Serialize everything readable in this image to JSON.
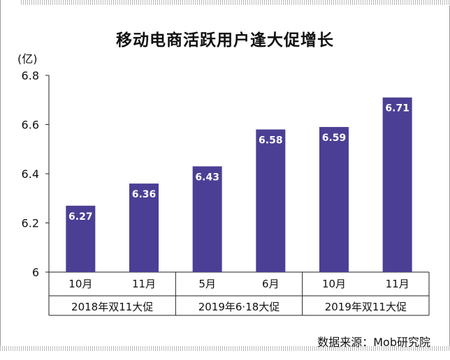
{
  "chart_data": {
    "type": "bar",
    "title": "移动电商活跃用户逢大促增长",
    "unit_label": "(亿)",
    "categories": [
      "10月",
      "11月",
      "5月",
      "6月",
      "10月",
      "11月"
    ],
    "groups": [
      {
        "label": "2018年双11大促",
        "count": 2
      },
      {
        "label": "2019年6·18大促",
        "count": 2
      },
      {
        "label": "2019年双11大促",
        "count": 2
      }
    ],
    "values": [
      6.27,
      6.36,
      6.43,
      6.58,
      6.59,
      6.71
    ],
    "data_labels": [
      "6.27",
      "6.36",
      "6.43",
      "6.58",
      "6.59",
      "6.71"
    ],
    "ylim": [
      6,
      6.8
    ],
    "yticks": [
      6,
      6.2,
      6.4,
      6.6,
      6.8
    ],
    "ytick_labels": [
      "6",
      "6.2",
      "6.4",
      "6.6",
      "6.8"
    ],
    "bar_color": "#4b3f95",
    "source": "数据来源：Mob研究院"
  }
}
